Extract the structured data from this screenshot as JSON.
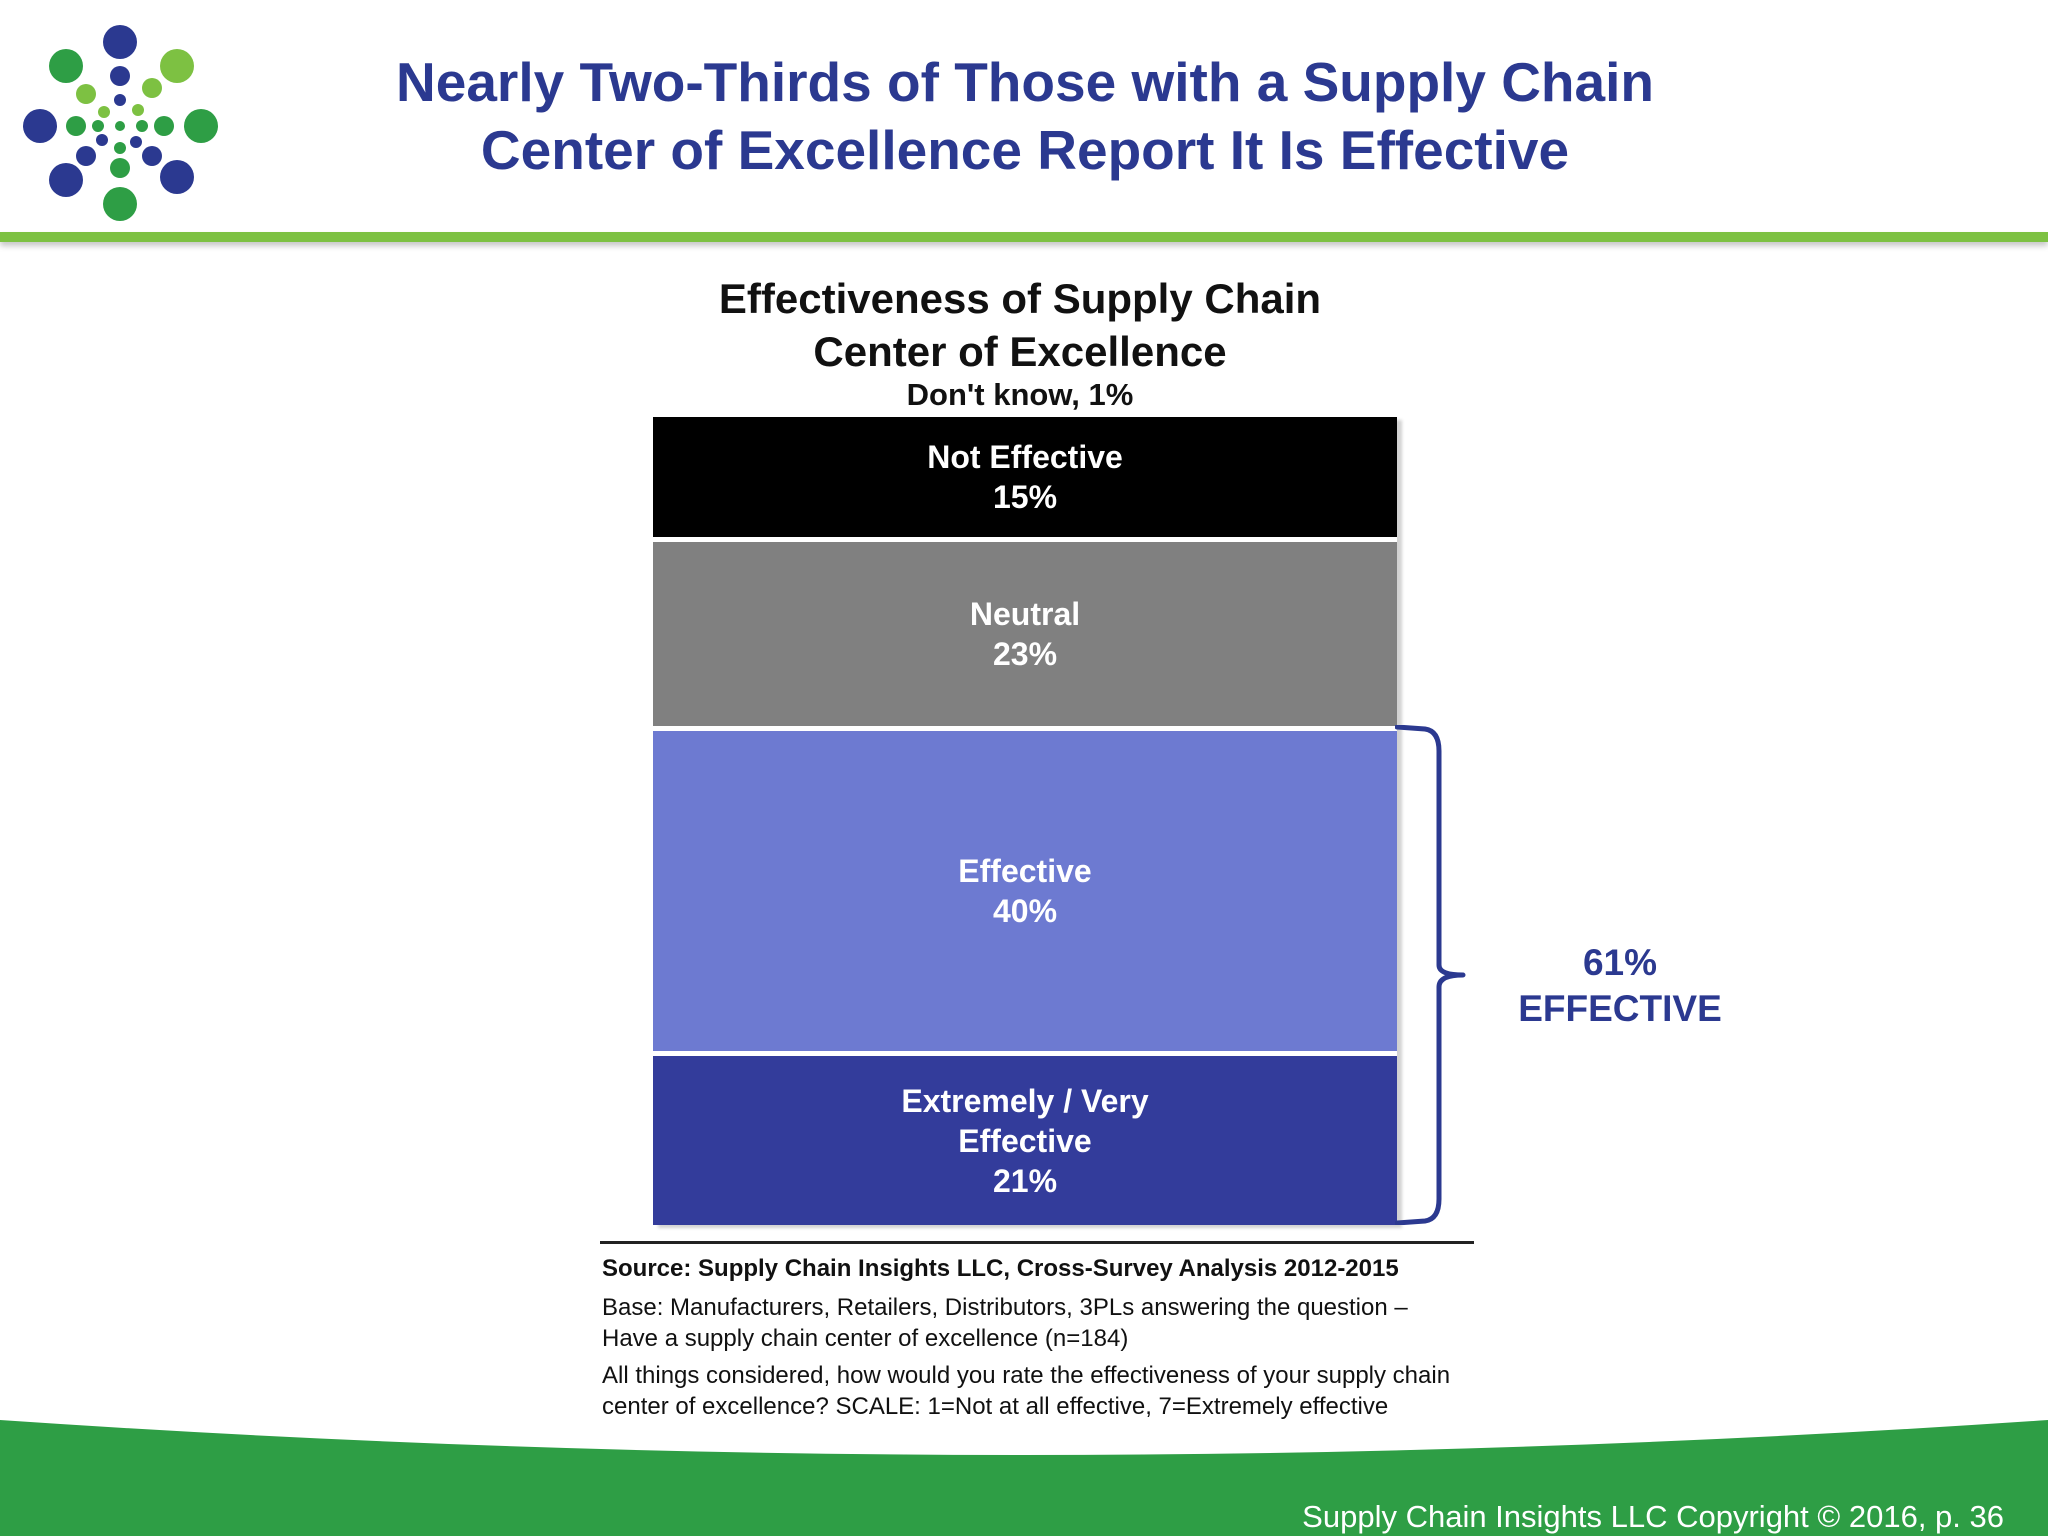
{
  "header": {
    "title_line1": "Nearly Two-Thirds of Those with a Supply Chain",
    "title_line2": "Center of Excellence Report It Is Effective",
    "title_color": "#2b3990",
    "rule_color": "#7dc142"
  },
  "logo": {
    "icon": "dotted-burst-logo",
    "colors": [
      "#2b3990",
      "#2e9e45",
      "#7dc142"
    ]
  },
  "chart_data": {
    "type": "bar",
    "subtype": "100%-stacked-single-column",
    "title_line1": "Effectiveness of Supply Chain",
    "title_line2": "Center of Excellence",
    "unit": "%",
    "segments_top_to_bottom": [
      {
        "category": "Don't know",
        "value": 1,
        "label": "Don't know, 1%",
        "color": "#ffffff"
      },
      {
        "category": "Not Effective",
        "value": 15,
        "label": "Not Effective\n15%",
        "color": "#000000"
      },
      {
        "category": "Neutral",
        "value": 23,
        "label": "Neutral\n23%",
        "color": "#808080"
      },
      {
        "category": "Effective",
        "value": 40,
        "label": "Effective\n40%",
        "color": "#6d7ad1"
      },
      {
        "category": "Extremely / Very Effective",
        "value": 21,
        "label": "Extremely / Very\nEffective\n21%",
        "color": "#333c9b"
      }
    ],
    "annotation": {
      "line1": "61%",
      "line2": "EFFECTIVE",
      "value": 61,
      "spans": [
        "Effective",
        "Extremely / Very Effective"
      ],
      "color": "#2b3990"
    }
  },
  "source": {
    "source_line": "Source:  Supply Chain Insights LLC, Cross-Survey Analysis 2012-2015",
    "base_line1": "Base:  Manufacturers,  Retailers, Distributors, 3PLs answering the question –",
    "base_line2": "Have a supply chain center of excellence (n=184)",
    "question_line1": "All things considered, how would you rate the effectiveness of your supply chain",
    "question_line2": "center of excellence? SCALE: 1=Not at all effective, 7=Extremely effective"
  },
  "footer": {
    "copyright": "Supply Chain Insights LLC Copyright © 2016, p. 36",
    "band_color": "#2e9e45"
  }
}
